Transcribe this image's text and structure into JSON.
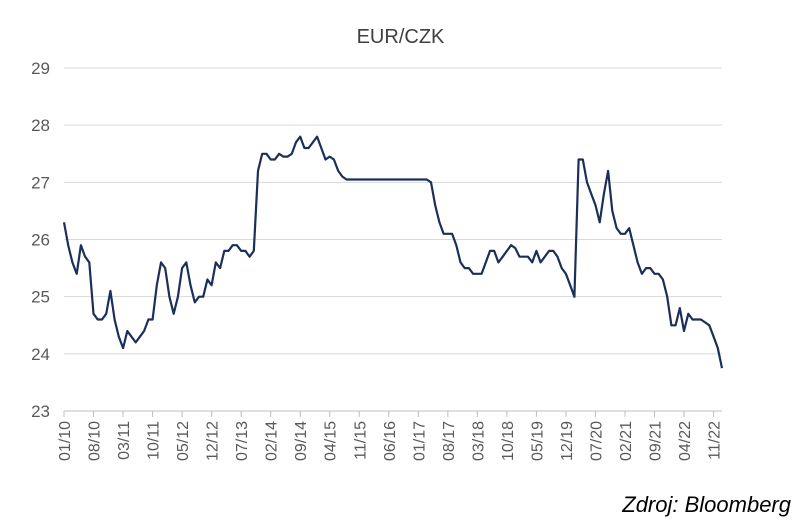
{
  "chart_data": {
    "type": "line",
    "title": "EUR/CZK",
    "xlabel": "",
    "ylabel": "",
    "ylim": [
      23,
      29
    ],
    "yticks": [
      23,
      24,
      25,
      26,
      27,
      28,
      29
    ],
    "grid": true,
    "legend": "none",
    "x_tick_labels": [
      "01/10",
      "08/10",
      "03/11",
      "10/11",
      "05/12",
      "12/12",
      "07/13",
      "02/14",
      "09/14",
      "04/15",
      "11/15",
      "06/16",
      "01/17",
      "08/17",
      "03/18",
      "10/18",
      "05/19",
      "12/19",
      "07/20",
      "02/21",
      "09/21",
      "04/22",
      "11/22"
    ],
    "x_start": "2010-01",
    "x_end": "2023-01",
    "series": [
      {
        "name": "",
        "color": "#1a2f5a",
        "points": [
          [
            "2010-01",
            26.3
          ],
          [
            "2010-02",
            25.9
          ],
          [
            "2010-03",
            25.6
          ],
          [
            "2010-04",
            25.4
          ],
          [
            "2010-05",
            25.9
          ],
          [
            "2010-06",
            25.7
          ],
          [
            "2010-07",
            25.6
          ],
          [
            "2010-08",
            24.7
          ],
          [
            "2010-09",
            24.6
          ],
          [
            "2010-10",
            24.6
          ],
          [
            "2010-11",
            24.7
          ],
          [
            "2010-12",
            25.1
          ],
          [
            "2011-01",
            24.6
          ],
          [
            "2011-02",
            24.3
          ],
          [
            "2011-03",
            24.1
          ],
          [
            "2011-04",
            24.4
          ],
          [
            "2011-05",
            24.3
          ],
          [
            "2011-06",
            24.2
          ],
          [
            "2011-07",
            24.3
          ],
          [
            "2011-08",
            24.4
          ],
          [
            "2011-09",
            24.6
          ],
          [
            "2011-10",
            24.6
          ],
          [
            "2011-11",
            25.2
          ],
          [
            "2011-12",
            25.6
          ],
          [
            "2012-01",
            25.5
          ],
          [
            "2012-02",
            25.0
          ],
          [
            "2012-03",
            24.7
          ],
          [
            "2012-04",
            25.0
          ],
          [
            "2012-05",
            25.5
          ],
          [
            "2012-06",
            25.6
          ],
          [
            "2012-07",
            25.2
          ],
          [
            "2012-08",
            24.9
          ],
          [
            "2012-09",
            25.0
          ],
          [
            "2012-10",
            25.0
          ],
          [
            "2012-11",
            25.3
          ],
          [
            "2012-12",
            25.2
          ],
          [
            "2013-01",
            25.6
          ],
          [
            "2013-02",
            25.5
          ],
          [
            "2013-03",
            25.8
          ],
          [
            "2013-04",
            25.8
          ],
          [
            "2013-05",
            25.9
          ],
          [
            "2013-06",
            25.9
          ],
          [
            "2013-07",
            25.8
          ],
          [
            "2013-08",
            25.8
          ],
          [
            "2013-09",
            25.7
          ],
          [
            "2013-10",
            25.8
          ],
          [
            "2013-11",
            27.2
          ],
          [
            "2013-12",
            27.5
          ],
          [
            "2014-01",
            27.5
          ],
          [
            "2014-02",
            27.4
          ],
          [
            "2014-03",
            27.4
          ],
          [
            "2014-04",
            27.5
          ],
          [
            "2014-05",
            27.45
          ],
          [
            "2014-06",
            27.45
          ],
          [
            "2014-07",
            27.5
          ],
          [
            "2014-08",
            27.7
          ],
          [
            "2014-09",
            27.8
          ],
          [
            "2014-10",
            27.6
          ],
          [
            "2014-11",
            27.6
          ],
          [
            "2014-12",
            27.7
          ],
          [
            "2015-01",
            27.8
          ],
          [
            "2015-02",
            27.6
          ],
          [
            "2015-03",
            27.4
          ],
          [
            "2015-04",
            27.45
          ],
          [
            "2015-05",
            27.4
          ],
          [
            "2015-06",
            27.2
          ],
          [
            "2015-07",
            27.1
          ],
          [
            "2015-08",
            27.05
          ],
          [
            "2015-09",
            27.05
          ],
          [
            "2015-10",
            27.05
          ],
          [
            "2016-01",
            27.05
          ],
          [
            "2016-06",
            27.05
          ],
          [
            "2016-12",
            27.05
          ],
          [
            "2017-03",
            27.05
          ],
          [
            "2017-04",
            27.0
          ],
          [
            "2017-05",
            26.6
          ],
          [
            "2017-06",
            26.3
          ],
          [
            "2017-07",
            26.1
          ],
          [
            "2017-08",
            26.1
          ],
          [
            "2017-09",
            26.1
          ],
          [
            "2017-10",
            25.9
          ],
          [
            "2017-11",
            25.6
          ],
          [
            "2017-12",
            25.5
          ],
          [
            "2018-01",
            25.5
          ],
          [
            "2018-02",
            25.4
          ],
          [
            "2018-03",
            25.4
          ],
          [
            "2018-04",
            25.4
          ],
          [
            "2018-05",
            25.6
          ],
          [
            "2018-06",
            25.8
          ],
          [
            "2018-07",
            25.8
          ],
          [
            "2018-08",
            25.6
          ],
          [
            "2018-09",
            25.7
          ],
          [
            "2018-10",
            25.8
          ],
          [
            "2018-11",
            25.9
          ],
          [
            "2018-12",
            25.85
          ],
          [
            "2019-01",
            25.7
          ],
          [
            "2019-02",
            25.7
          ],
          [
            "2019-03",
            25.7
          ],
          [
            "2019-04",
            25.6
          ],
          [
            "2019-05",
            25.8
          ],
          [
            "2019-06",
            25.6
          ],
          [
            "2019-07",
            25.7
          ],
          [
            "2019-08",
            25.8
          ],
          [
            "2019-09",
            25.8
          ],
          [
            "2019-10",
            25.7
          ],
          [
            "2019-11",
            25.5
          ],
          [
            "2019-12",
            25.4
          ],
          [
            "2020-01",
            25.2
          ],
          [
            "2020-02",
            25.0
          ],
          [
            "2020-03",
            27.4
          ],
          [
            "2020-04",
            27.4
          ],
          [
            "2020-05",
            27.0
          ],
          [
            "2020-06",
            26.8
          ],
          [
            "2020-07",
            26.6
          ],
          [
            "2020-08",
            26.3
          ],
          [
            "2020-09",
            26.8
          ],
          [
            "2020-10",
            27.2
          ],
          [
            "2020-11",
            26.5
          ],
          [
            "2020-12",
            26.2
          ],
          [
            "2021-01",
            26.1
          ],
          [
            "2021-02",
            26.1
          ],
          [
            "2021-03",
            26.2
          ],
          [
            "2021-04",
            25.9
          ],
          [
            "2021-05",
            25.6
          ],
          [
            "2021-06",
            25.4
          ],
          [
            "2021-07",
            25.5
          ],
          [
            "2021-08",
            25.5
          ],
          [
            "2021-09",
            25.4
          ],
          [
            "2021-10",
            25.4
          ],
          [
            "2021-11",
            25.3
          ],
          [
            "2021-12",
            25.0
          ],
          [
            "2022-01",
            24.5
          ],
          [
            "2022-02",
            24.5
          ],
          [
            "2022-03",
            24.8
          ],
          [
            "2022-04",
            24.4
          ],
          [
            "2022-05",
            24.7
          ],
          [
            "2022-06",
            24.6
          ],
          [
            "2022-07",
            24.6
          ],
          [
            "2022-08",
            24.6
          ],
          [
            "2022-09",
            24.55
          ],
          [
            "2022-10",
            24.5
          ],
          [
            "2022-11",
            24.3
          ],
          [
            "2022-12",
            24.1
          ],
          [
            "2023-01",
            23.75
          ]
        ]
      }
    ]
  },
  "source_note": "Zdroj: Bloomberg"
}
